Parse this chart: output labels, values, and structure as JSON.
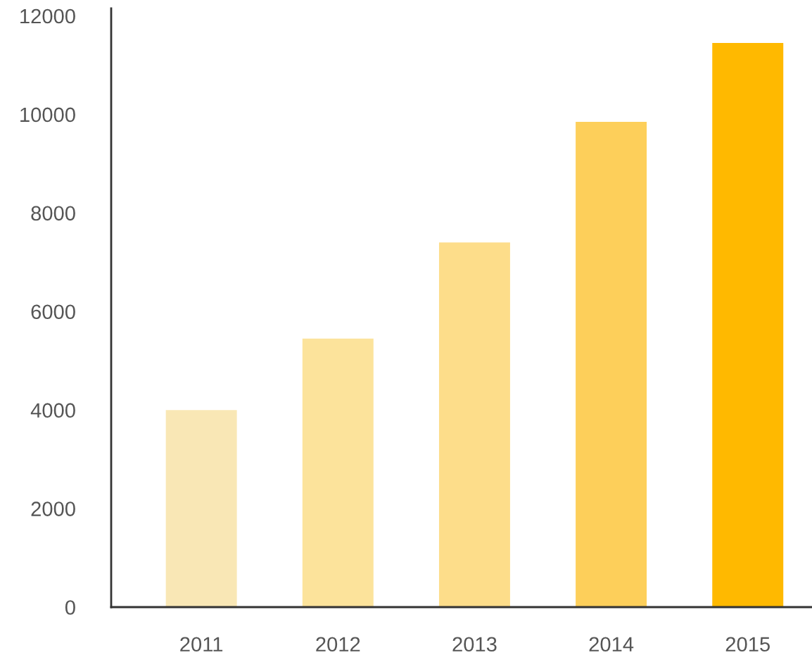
{
  "chart_data": {
    "type": "bar",
    "categories": [
      "2011",
      "2012",
      "2013",
      "2014",
      "2015"
    ],
    "values": [
      4000,
      5450,
      7400,
      9850,
      11450
    ],
    "colors": [
      "#f9e7b5",
      "#fce39b",
      "#fddd8a",
      "#fdcf5a",
      "#ffb900"
    ],
    "ylim": [
      0,
      12150
    ],
    "yticks": [
      0,
      2000,
      4000,
      6000,
      8000,
      10000,
      12000
    ]
  }
}
